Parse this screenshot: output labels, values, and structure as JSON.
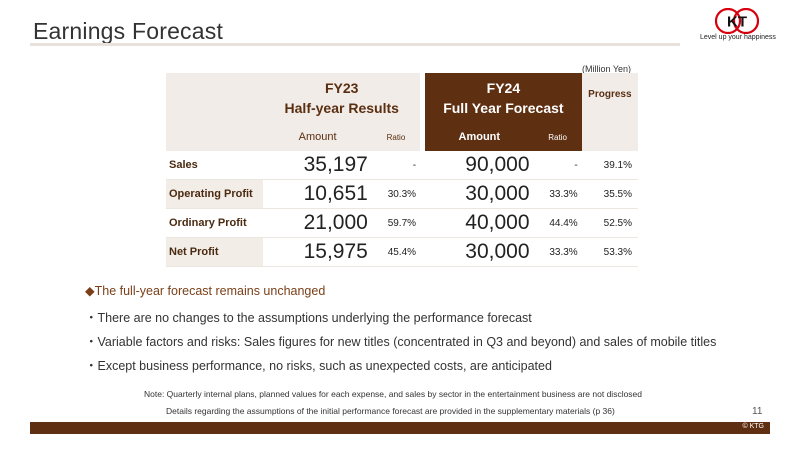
{
  "title": "Earnings Forecast",
  "logo": {
    "mark": "KT",
    "tagline": "Level up your happiness"
  },
  "unit_note": "(Million Yen)",
  "table": {
    "fy23": {
      "line1": "FY23",
      "line2": "Half-year Results",
      "amount_label": "Amount",
      "ratio_label": "Ratio"
    },
    "fy24": {
      "line1": "FY24",
      "line2": "Full Year Forecast",
      "amount_label": "Amount",
      "ratio_label": "Ratio"
    },
    "progress_label": "Progress",
    "rows": [
      {
        "label": "Sales",
        "fy23_amount": "35,197",
        "fy23_ratio": "-",
        "fy24_amount": "90,000",
        "fy24_ratio": "-",
        "progress": "39.1%"
      },
      {
        "label": "Operating Profit",
        "fy23_amount": "10,651",
        "fy23_ratio": "30.3%",
        "fy24_amount": "30,000",
        "fy24_ratio": "33.3%",
        "progress": "35.5%"
      },
      {
        "label": "Ordinary Profit",
        "fy23_amount": "21,000",
        "fy23_ratio": "59.7%",
        "fy24_amount": "40,000",
        "fy24_ratio": "44.4%",
        "progress": "52.5%"
      },
      {
        "label": "Net Profit",
        "fy23_amount": "15,975",
        "fy23_ratio": "45.4%",
        "fy24_amount": "30,000",
        "fy24_ratio": "33.3%",
        "progress": "53.3%"
      }
    ]
  },
  "bullets": {
    "headline": "◆The full-year forecast remains unchanged",
    "items": [
      "・There are no changes to the assumptions underlying the performance forecast",
      "・Variable factors and risks: Sales figures for new titles (concentrated in Q3 and beyond) and sales of mobile titles",
      "・Except business performance, no risks, such as unexpected costs, are anticipated"
    ]
  },
  "notes": [
    "Note: Quarterly internal plans, planned values for each expense, and sales by sector in the entertainment business are not disclosed",
    "Details regarding the assumptions of the initial performance forecast are provided in the supplementary materials (p 36)"
  ],
  "page_number": "11",
  "copyright": "© KTG",
  "colors": {
    "brand_dark": "#5f2f12",
    "header_bg": "#f1ece8",
    "accent_text": "#7a3f18",
    "logo_red": "#d7000f"
  }
}
